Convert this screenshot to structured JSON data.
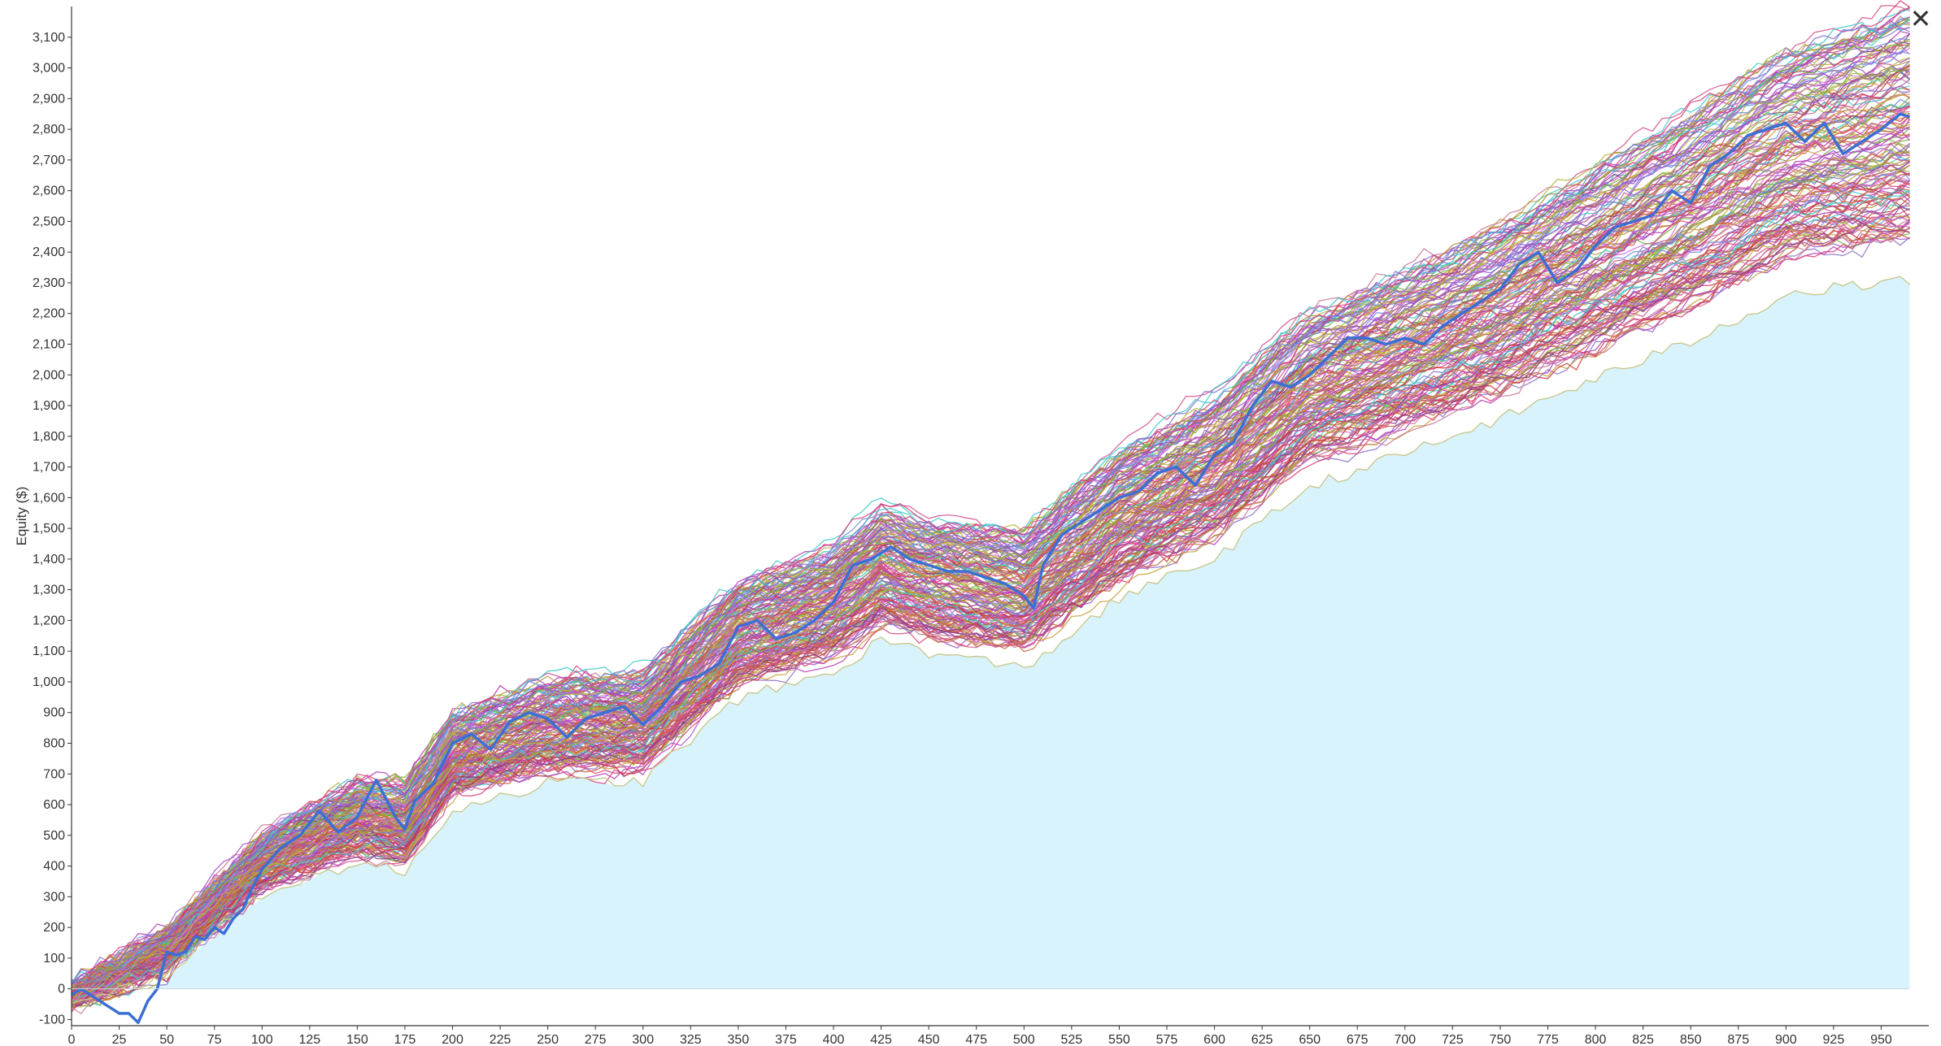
{
  "chart_data": {
    "type": "line",
    "title": "",
    "xlabel": "",
    "ylabel": "Equity ($)",
    "xlim": [
      0,
      975
    ],
    "ylim": [
      -120,
      3200
    ],
    "x_ticks": [
      0,
      25,
      50,
      75,
      100,
      125,
      150,
      175,
      200,
      225,
      250,
      275,
      300,
      325,
      350,
      375,
      400,
      425,
      450,
      475,
      500,
      525,
      550,
      575,
      600,
      625,
      650,
      675,
      700,
      725,
      750,
      775,
      800,
      825,
      850,
      875,
      900,
      925,
      950
    ],
    "x_tick_labels": [
      "0",
      "25",
      "50",
      "75",
      "100",
      "125",
      "150",
      "175",
      "200",
      "225",
      "250",
      "275",
      "300",
      "325",
      "350",
      "375",
      "400",
      "425",
      "450",
      "475",
      "500",
      "525",
      "550",
      "575",
      "600",
      "625",
      "650",
      "675",
      "700",
      "725",
      "750",
      "775",
      "800",
      "825",
      "850",
      "875",
      "900",
      "925",
      "950"
    ],
    "y_ticks": [
      -100,
      0,
      100,
      200,
      300,
      400,
      500,
      600,
      700,
      800,
      900,
      1000,
      1100,
      1200,
      1300,
      1400,
      1500,
      1600,
      1700,
      1800,
      1900,
      2000,
      2100,
      2200,
      2300,
      2400,
      2500,
      2600,
      2700,
      2800,
      2900,
      3000,
      3100
    ],
    "y_tick_labels": [
      "-100",
      "0",
      "100",
      "200",
      "300",
      "400",
      "500",
      "600",
      "700",
      "800",
      "900",
      "1,000",
      "1,100",
      "1,200",
      "1,300",
      "1,400",
      "1,500",
      "1,600",
      "1,700",
      "1,800",
      "1,900",
      "2,000",
      "2,100",
      "2,200",
      "2,300",
      "2,400",
      "2,500",
      "2,600",
      "2,700",
      "2,800",
      "2,900",
      "3,000",
      "3,100"
    ],
    "grid": false,
    "legend": "none",
    "main_series": {
      "color": "#3b6fd4",
      "x": [
        0,
        5,
        10,
        15,
        20,
        25,
        30,
        35,
        40,
        45,
        50,
        55,
        60,
        65,
        70,
        75,
        80,
        85,
        90,
        95,
        100,
        110,
        120,
        130,
        140,
        150,
        160,
        165,
        170,
        175,
        180,
        190,
        200,
        210,
        220,
        230,
        240,
        250,
        260,
        270,
        280,
        290,
        300,
        310,
        320,
        330,
        340,
        350,
        360,
        370,
        380,
        390,
        400,
        410,
        420,
        430,
        440,
        450,
        460,
        470,
        480,
        490,
        500,
        505,
        510,
        520,
        530,
        540,
        550,
        560,
        570,
        580,
        590,
        600,
        610,
        620,
        630,
        640,
        650,
        660,
        670,
        680,
        690,
        700,
        710,
        720,
        730,
        740,
        750,
        760,
        770,
        780,
        790,
        800,
        810,
        820,
        830,
        840,
        850,
        860,
        870,
        880,
        890,
        900,
        910,
        920,
        930,
        940,
        950,
        960,
        965
      ],
      "y": [
        -20,
        0,
        -20,
        -40,
        -60,
        -80,
        -80,
        -110,
        -40,
        0,
        120,
        110,
        120,
        170,
        160,
        200,
        180,
        230,
        260,
        330,
        390,
        460,
        500,
        580,
        510,
        560,
        680,
        620,
        560,
        520,
        610,
        670,
        800,
        830,
        780,
        870,
        900,
        880,
        820,
        880,
        900,
        920,
        860,
        920,
        1000,
        1020,
        1060,
        1180,
        1200,
        1140,
        1160,
        1200,
        1260,
        1380,
        1400,
        1440,
        1400,
        1380,
        1360,
        1360,
        1340,
        1320,
        1280,
        1240,
        1380,
        1480,
        1520,
        1560,
        1600,
        1620,
        1680,
        1700,
        1640,
        1740,
        1780,
        1900,
        1980,
        1960,
        2000,
        2060,
        2120,
        2120,
        2100,
        2120,
        2100,
        2160,
        2200,
        2240,
        2280,
        2360,
        2400,
        2300,
        2340,
        2420,
        2480,
        2500,
        2520,
        2600,
        2560,
        2680,
        2720,
        2780,
        2800,
        2820,
        2760,
        2820,
        2720,
        2760,
        2800,
        2850,
        2840
      ]
    },
    "band": {
      "x": [
        0,
        50,
        100,
        150,
        175,
        200,
        250,
        300,
        350,
        400,
        425,
        450,
        500,
        550,
        600,
        650,
        700,
        750,
        800,
        850,
        900,
        950,
        965
      ],
      "center": [
        -20,
        130,
        420,
        560,
        540,
        760,
        860,
        880,
        1160,
        1260,
        1380,
        1340,
        1300,
        1540,
        1700,
        1960,
        2080,
        2220,
        2380,
        2540,
        2720,
        2800,
        2820
      ],
      "spread": [
        30,
        60,
        80,
        110,
        120,
        130,
        140,
        150,
        160,
        170,
        180,
        180,
        190,
        200,
        220,
        240,
        250,
        270,
        290,
        320,
        340,
        370,
        380
      ]
    },
    "simulation_count": 160,
    "simulation_colors": [
      "#b43cb4",
      "#d0508c",
      "#c83c3c",
      "#b48c3c",
      "#8c6ec8",
      "#c87894",
      "#3cc8c8",
      "#78b43c",
      "#c8a03c",
      "#a050c8",
      "#dc3c78",
      "#8c3c8c",
      "#c8643c",
      "#6e8cdc",
      "#b4b43c",
      "#d26ed2"
    ],
    "lowest_curve_color": "#c8c890",
    "area_fill_color": "#d9f3fc"
  },
  "ui": {
    "close_label": "✕"
  }
}
